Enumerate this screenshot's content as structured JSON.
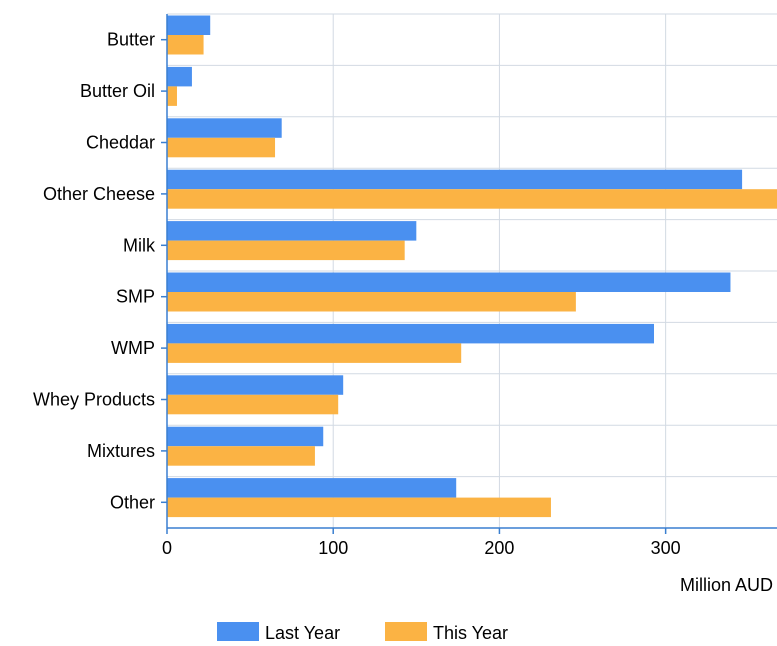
{
  "chart_data": {
    "type": "bar",
    "orientation": "horizontal",
    "categories": [
      "Butter",
      "Butter Oil",
      "Cheddar",
      "Other Cheese",
      "Milk",
      "SMP",
      "WMP",
      "Whey Products",
      "Mixtures",
      "Other"
    ],
    "series": [
      {
        "name": "Last Year",
        "color": "#4a90f0",
        "values": [
          26,
          15,
          69,
          346,
          150,
          339,
          293,
          106,
          94,
          174
        ]
      },
      {
        "name": "This Year",
        "color": "#fbb344",
        "values": [
          22,
          6,
          65,
          367,
          143,
          246,
          177,
          103,
          89,
          231
        ]
      }
    ],
    "xlabel": "Million AUD",
    "ylabel": "",
    "title": "",
    "xlim": [
      0,
      367
    ],
    "xticks": [
      0,
      100,
      200,
      300
    ],
    "grid": true,
    "legend_position": "bottom",
    "colors": {
      "axis": "#3a7fd0",
      "grid": "#d2dae3"
    }
  }
}
